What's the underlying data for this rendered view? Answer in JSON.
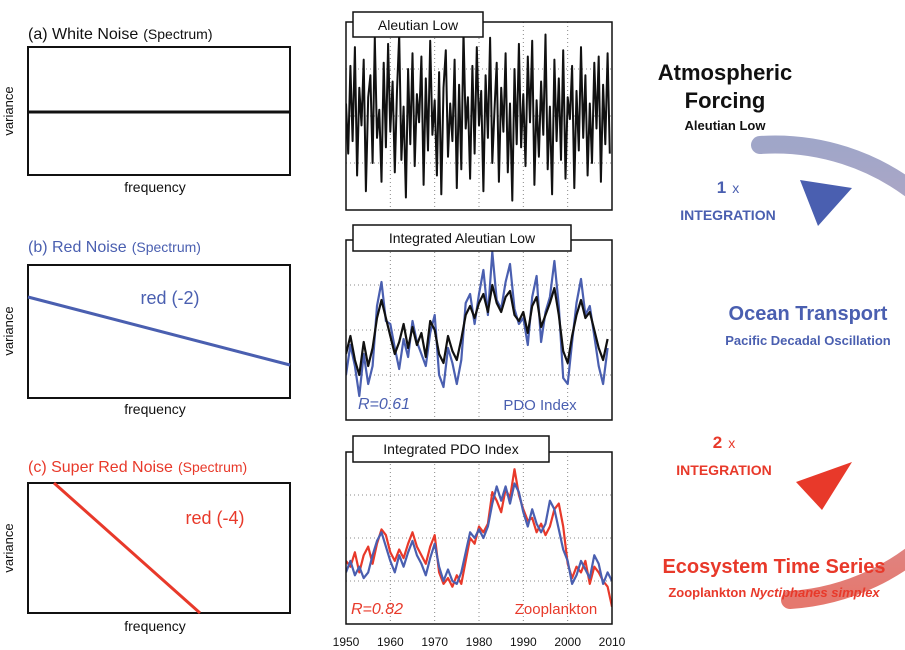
{
  "colors": {
    "black": "#111111",
    "blue": "#4a5fb0",
    "red": "#e8392a",
    "grid": "#888888",
    "arrow_top": "#8f96bf",
    "arrow_mid": "#c59ab0",
    "arrow_bottom": "#e2695e"
  },
  "spectra": {
    "a": {
      "label": "(a) White Noise",
      "suffix": "(Spectrum)",
      "ylabel": "variance",
      "xlabel": "frequency",
      "line_label": ""
    },
    "b": {
      "label": "(b) Red Noise",
      "suffix": "(Spectrum)",
      "ylabel": "variance",
      "xlabel": "frequency",
      "line_label": "red (-2)"
    },
    "c": {
      "label": "(c) Super Red Noise",
      "suffix": "(Spectrum)",
      "ylabel": "variance",
      "xlabel": "frequency",
      "line_label": "red (-4)"
    }
  },
  "chart_data": [
    {
      "type": "line",
      "title": "(a) White Noise (Spectrum)",
      "xlabel": "frequency",
      "ylabel": "variance",
      "x": [
        0,
        1
      ],
      "y": [
        0.55,
        0.55
      ],
      "series": [
        {
          "color": "#111111"
        }
      ]
    },
    {
      "type": "line",
      "title": "(b) Red Noise (Spectrum)",
      "xlabel": "frequency",
      "ylabel": "variance",
      "annotation": "red (-2)",
      "x": [
        0,
        1
      ],
      "y": [
        0.75,
        0.1
      ],
      "series": [
        {
          "name": "red (-2)",
          "color": "#4a5fb0"
        }
      ]
    },
    {
      "type": "line",
      "title": "(c) Super Red Noise (Spectrum)",
      "xlabel": "frequency",
      "ylabel": "variance",
      "annotation": "red (-4)",
      "x": [
        0.1,
        0.65
      ],
      "y": [
        1.0,
        0.0
      ],
      "series": [
        {
          "name": "red (-4)",
          "color": "#e8392a"
        }
      ]
    },
    {
      "type": "line",
      "title": "Aleutian Low",
      "xlim": [
        1950,
        2010
      ],
      "ylim": [
        -3,
        3
      ],
      "grid": true,
      "series": [
        {
          "color": "#111111",
          "x": [
            1950,
            1950.5,
            1951,
            1951.5,
            1952,
            1952.5,
            1953,
            1953.5,
            1954,
            1954.5,
            1955,
            1955.5,
            1956,
            1956.5,
            1957,
            1957.5,
            1958,
            1958.5,
            1959,
            1959.5,
            1960,
            1960.5,
            1961,
            1961.5,
            1962,
            1962.5,
            1963,
            1963.5,
            1964,
            1964.5,
            1965,
            1965.5,
            1966,
            1966.5,
            1967,
            1967.5,
            1968,
            1968.5,
            1969,
            1969.5,
            1970,
            1970.5,
            1971,
            1971.5,
            1972,
            1972.5,
            1973,
            1973.5,
            1974,
            1974.5,
            1975,
            1975.5,
            1976,
            1976.5,
            1977,
            1977.5,
            1978,
            1978.5,
            1979,
            1979.5,
            1980,
            1980.5,
            1981,
            1981.5,
            1982,
            1982.5,
            1983,
            1983.5,
            1984,
            1984.5,
            1985,
            1985.5,
            1986,
            1986.5,
            1987,
            1987.5,
            1988,
            1988.5,
            1989,
            1989.5,
            1990,
            1990.5,
            1991,
            1991.5,
            1992,
            1992.5,
            1993,
            1993.5,
            1994,
            1994.5,
            1995,
            1995.5,
            1996,
            1996.5,
            1997,
            1997.5,
            1998,
            1998.5,
            1999,
            1999.5,
            2000,
            2000.5,
            2001,
            2001.5,
            2002,
            2002.5,
            2003,
            2003.5,
            2004,
            2004.5,
            2005,
            2005.5,
            2006,
            2006.5,
            2007,
            2007.5,
            2008,
            2008.5,
            2009,
            2009.5
          ],
          "y": [
            0.4,
            -1.2,
            1.6,
            -0.8,
            2.2,
            -1.9,
            0.9,
            -0.3,
            1.8,
            -2.4,
            0.6,
            1.3,
            -1.5,
            2.5,
            -0.7,
            0.2,
            -2.1,
            1.7,
            -1.0,
            2.3,
            -0.5,
            1.1,
            -1.8,
            0.8,
            2.6,
            -1.4,
            0.3,
            -2.6,
            1.5,
            -0.9,
            2.0,
            -1.6,
            0.7,
            -0.2,
            1.9,
            -2.2,
            1.2,
            -1.1,
            2.4,
            -0.6,
            0.5,
            -1.9,
            1.4,
            -2.5,
            0.9,
            2.1,
            -1.3,
            0.4,
            -0.8,
            1.8,
            -2.3,
            1.0,
            -1.7,
            2.7,
            -0.4,
            0.6,
            -2.0,
            1.6,
            -1.2,
            2.2,
            -0.3,
            0.8,
            -2.4,
            1.3,
            -0.7,
            2.5,
            -1.5,
            0.2,
            1.7,
            -2.1,
            0.9,
            -0.5,
            2.0,
            -1.8,
            0.4,
            -2.7,
            1.5,
            -0.9,
            2.3,
            -1.0,
            0.7,
            -1.6,
            1.9,
            -0.2,
            2.4,
            -2.2,
            0.5,
            -1.3,
            1.1,
            -0.6,
            2.6,
            -1.7,
            0.3,
            -2.5,
            1.8,
            -0.8,
            1.2,
            -1.4,
            2.1,
            -2.0,
            0.6,
            -0.1,
            1.6,
            -2.3,
            0.8,
            -1.1,
            2.2,
            -0.7,
            1.3,
            -1.9,
            0.4,
            -1.5,
            1.7,
            -0.4,
            1.9,
            -2.1,
            1.0,
            -0.9,
            2.0,
            -1.2
          ]
        }
      ]
    },
    {
      "type": "line",
      "title": "Integrated Aleutian Low",
      "annotation": "R=0.61",
      "xlim": [
        1950,
        2010
      ],
      "ylim": [
        -3,
        3
      ],
      "grid": true,
      "series": [
        {
          "name": "PDO Index",
          "color": "#4a5fb0",
          "x": [
            1950,
            1951,
            1952,
            1953,
            1954,
            1955,
            1956,
            1957,
            1958,
            1959,
            1960,
            1961,
            1962,
            1963,
            1964,
            1965,
            1966,
            1967,
            1968,
            1969,
            1970,
            1971,
            1972,
            1973,
            1974,
            1975,
            1976,
            1977,
            1978,
            1979,
            1980,
            1981,
            1982,
            1983,
            1984,
            1985,
            1986,
            1987,
            1988,
            1989,
            1990,
            1991,
            1992,
            1993,
            1994,
            1995,
            1996,
            1997,
            1998,
            1999,
            2000,
            2001,
            2002,
            2003,
            2004,
            2005,
            2006,
            2007,
            2008,
            2009
          ],
          "y": [
            -1.5,
            -0.5,
            -1.2,
            -2.2,
            -0.8,
            -1.8,
            -1.2,
            0.8,
            1.6,
            0.3,
            0.2,
            -0.6,
            -1.3,
            -0.3,
            -0.9,
            0.3,
            -0.4,
            -0.8,
            -1.2,
            -0.1,
            0.5,
            -1.5,
            -1.9,
            -0.6,
            -1.1,
            -1.8,
            -1.0,
            0.9,
            1.2,
            0.2,
            1.2,
            2.0,
            0.5,
            2.6,
            1.0,
            0.7,
            1.6,
            2.2,
            0.7,
            0.2,
            0.4,
            -0.5,
            1.1,
            1.8,
            -0.4,
            0.6,
            1.1,
            2.3,
            0.8,
            -1.6,
            -1.8,
            -0.4,
            0.9,
            1.7,
            0.5,
            0.8,
            -0.2,
            -1.2,
            -1.8,
            -0.6
          ]
        },
        {
          "color": "#111111",
          "x": [
            1950,
            1951,
            1952,
            1953,
            1954,
            1955,
            1956,
            1957,
            1958,
            1959,
            1960,
            1961,
            1962,
            1963,
            1964,
            1965,
            1966,
            1967,
            1968,
            1969,
            1970,
            1971,
            1972,
            1973,
            1974,
            1975,
            1976,
            1977,
            1978,
            1979,
            1980,
            1981,
            1982,
            1983,
            1984,
            1985,
            1986,
            1987,
            1988,
            1989,
            1990,
            1991,
            1992,
            1993,
            1994,
            1995,
            1996,
            1997,
            1998,
            1999,
            2000,
            2001,
            2002,
            2003,
            2004,
            2005,
            2006,
            2007,
            2008,
            2009
          ],
          "y": [
            -0.8,
            -0.2,
            -1.0,
            -1.5,
            -0.4,
            -1.2,
            -0.6,
            0.4,
            1.0,
            0.4,
            -0.2,
            -0.8,
            -0.4,
            0.2,
            -0.6,
            0.1,
            -0.5,
            -0.1,
            -0.9,
            0.3,
            0.0,
            -0.8,
            -1.1,
            -0.2,
            -0.7,
            -1.0,
            -0.3,
            0.5,
            0.8,
            0.4,
            0.9,
            1.2,
            0.6,
            1.5,
            0.9,
            0.6,
            1.1,
            1.3,
            0.5,
            0.3,
            0.6,
            -0.1,
            0.8,
            1.1,
            0.1,
            0.5,
            0.9,
            1.4,
            0.5,
            -0.7,
            -1.1,
            -0.2,
            0.5,
            1.0,
            0.4,
            0.6,
            0.0,
            -0.6,
            -1.0,
            -0.3
          ]
        }
      ]
    },
    {
      "type": "line",
      "title": "Integrated PDO Index",
      "annotation": "R=0.82",
      "xlim": [
        1950,
        2010
      ],
      "ylim": [
        -3,
        3
      ],
      "grid": true,
      "x_ticks": [
        1950,
        1960,
        1970,
        1980,
        1990,
        2000,
        2010
      ],
      "series": [
        {
          "name": "Zooplankton",
          "color": "#e8392a",
          "x": [
            1950,
            1951,
            1952,
            1953,
            1954,
            1955,
            1956,
            1957,
            1958,
            1959,
            1960,
            1961,
            1962,
            1963,
            1964,
            1965,
            1966,
            1967,
            1968,
            1969,
            1970,
            1971,
            1972,
            1973,
            1974,
            1975,
            1976,
            1977,
            1978,
            1979,
            1980,
            1981,
            1982,
            1983,
            1984,
            1985,
            1986,
            1987,
            1988,
            1989,
            1990,
            1991,
            1992,
            1993,
            1994,
            1995,
            1996,
            1997,
            1998,
            1999,
            2000,
            2001,
            2002,
            2003,
            2004,
            2005,
            2006,
            2007,
            2008,
            2009,
            2010
          ],
          "y": [
            -0.8,
            -1.0,
            -0.5,
            -1.2,
            -0.6,
            -0.3,
            -0.9,
            -0.2,
            0.3,
            0.1,
            -0.5,
            -0.8,
            -0.4,
            -0.7,
            -0.2,
            0.2,
            -0.3,
            -0.6,
            -0.9,
            -0.3,
            0.1,
            -1.2,
            -1.6,
            -1.4,
            -1.7,
            -1.3,
            -1.6,
            -0.8,
            0.0,
            -0.2,
            0.4,
            0.2,
            0.5,
            1.6,
            1.3,
            0.9,
            1.7,
            1.4,
            2.4,
            1.5,
            1.0,
            0.6,
            0.7,
            0.2,
            0.5,
            0.1,
            0.4,
            1.0,
            1.2,
            0.4,
            -0.9,
            -1.4,
            -1.0,
            -1.2,
            -0.8,
            -1.6,
            -1.0,
            -1.2,
            -1.5,
            -1.7,
            -2.4
          ]
        },
        {
          "color": "#4a5fb0",
          "x": [
            1950,
            1951,
            1952,
            1953,
            1954,
            1955,
            1956,
            1957,
            1958,
            1959,
            1960,
            1961,
            1962,
            1963,
            1964,
            1965,
            1966,
            1967,
            1968,
            1969,
            1970,
            1971,
            1972,
            1973,
            1974,
            1975,
            1976,
            1977,
            1978,
            1979,
            1980,
            1981,
            1982,
            1983,
            1984,
            1985,
            1986,
            1987,
            1988,
            1989,
            1990,
            1991,
            1992,
            1993,
            1994,
            1995,
            1996,
            1997,
            1998,
            1999,
            2000,
            2001,
            2002,
            2003,
            2004,
            2005,
            2006,
            2007,
            2008,
            2009,
            2010
          ],
          "y": [
            -1.2,
            -0.8,
            -1.3,
            -1.0,
            -1.4,
            -1.2,
            -0.6,
            -0.1,
            0.2,
            -0.3,
            -0.8,
            -1.2,
            -0.6,
            -1.0,
            -0.5,
            -0.1,
            -0.6,
            -0.9,
            -1.3,
            -0.7,
            -0.2,
            -1.0,
            -1.5,
            -1.1,
            -1.5,
            -1.6,
            -1.2,
            -0.5,
            0.2,
            0.0,
            0.3,
            0.0,
            0.4,
            1.2,
            1.8,
            1.3,
            1.8,
            1.2,
            1.9,
            1.6,
            0.9,
            0.4,
            1.0,
            0.5,
            0.2,
            0.5,
            1.3,
            1.0,
            0.3,
            -0.4,
            -0.8,
            -1.6,
            -1.3,
            -0.8,
            -1.1,
            -1.4,
            -0.6,
            -0.9,
            -1.6,
            -1.2,
            -1.5
          ]
        }
      ]
    }
  ],
  "middle": {
    "panel1": {
      "title": "Aleutian Low"
    },
    "panel2": {
      "title": "Integrated Aleutian Low",
      "r_label": "R=0.61",
      "legend_label": "PDO Index"
    },
    "panel3": {
      "title": "Integrated PDO Index",
      "r_label": "R=0.82",
      "legend_label": "Zooplankton"
    },
    "x_ticks": [
      "1950",
      "1960",
      "1970",
      "1980",
      "1990",
      "2000",
      "2010"
    ]
  },
  "flow": {
    "stage1": {
      "title_line1": "Atmospheric",
      "title_line2": "Forcing",
      "subtitle": "Aleutian Low"
    },
    "step1": {
      "count": "1",
      "x": "x",
      "label": "INTEGRATION"
    },
    "stage2": {
      "title": "Ocean Transport",
      "subtitle": "Pacific Decadal Oscillation"
    },
    "step2": {
      "count": "2",
      "x": "x",
      "label": "INTEGRATION"
    },
    "stage3": {
      "title": "Ecosystem Time Series",
      "subtitle_plain": "Zooplankton",
      "subtitle_italic": "Nyctiphanes simplex"
    }
  }
}
